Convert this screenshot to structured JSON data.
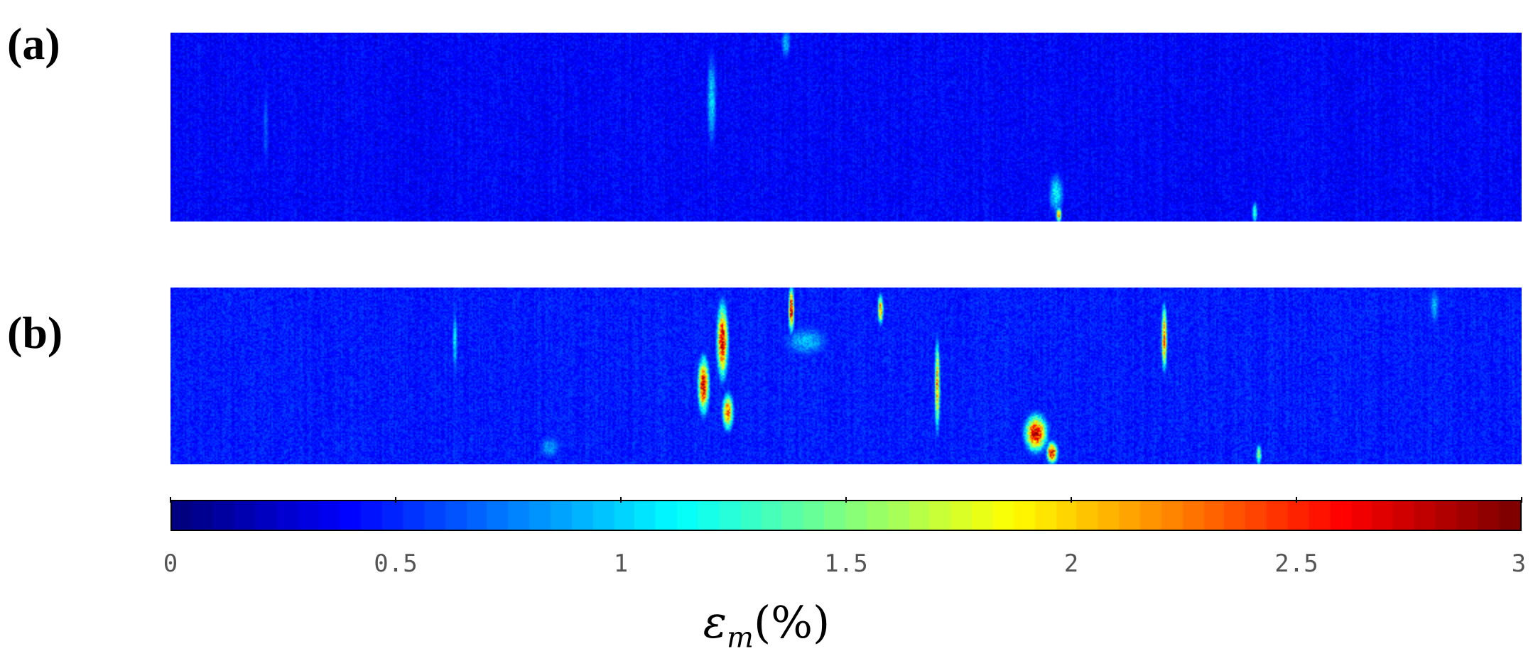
{
  "chart_data": {
    "type": "heatmap",
    "panels": [
      {
        "label": "(a)",
        "description_level": "low",
        "max_value": 2.4,
        "hotspots": [
          {
            "x": 0.4,
            "y": 0.35,
            "v": 1.1,
            "sx": 0.004,
            "sy": 0.28
          },
          {
            "x": 0.455,
            "y": 0.05,
            "v": 1.0,
            "sx": 0.004,
            "sy": 0.1
          },
          {
            "x": 0.655,
            "y": 0.85,
            "v": 1.2,
            "sx": 0.006,
            "sy": 0.12
          },
          {
            "x": 0.657,
            "y": 0.96,
            "v": 2.4,
            "sx": 0.002,
            "sy": 0.04
          },
          {
            "x": 0.802,
            "y": 0.95,
            "v": 1.5,
            "sx": 0.002,
            "sy": 0.06
          },
          {
            "x": 0.07,
            "y": 0.5,
            "v": 0.7,
            "sx": 0.003,
            "sy": 0.3
          }
        ]
      },
      {
        "label": "(b)",
        "description_level": "high",
        "max_value": 3.0,
        "hotspots": [
          {
            "x": 0.408,
            "y": 0.3,
            "v": 3.0,
            "sx": 0.004,
            "sy": 0.2
          },
          {
            "x": 0.394,
            "y": 0.55,
            "v": 3.0,
            "sx": 0.004,
            "sy": 0.15
          },
          {
            "x": 0.412,
            "y": 0.7,
            "v": 2.6,
            "sx": 0.004,
            "sy": 0.1
          },
          {
            "x": 0.459,
            "y": 0.12,
            "v": 3.0,
            "sx": 0.002,
            "sy": 0.12
          },
          {
            "x": 0.525,
            "y": 0.12,
            "v": 2.5,
            "sx": 0.002,
            "sy": 0.08
          },
          {
            "x": 0.567,
            "y": 0.55,
            "v": 2.4,
            "sx": 0.002,
            "sy": 0.25
          },
          {
            "x": 0.64,
            "y": 0.82,
            "v": 3.0,
            "sx": 0.008,
            "sy": 0.1
          },
          {
            "x": 0.652,
            "y": 0.93,
            "v": 3.0,
            "sx": 0.004,
            "sy": 0.06
          },
          {
            "x": 0.735,
            "y": 0.28,
            "v": 2.6,
            "sx": 0.002,
            "sy": 0.18
          },
          {
            "x": 0.805,
            "y": 0.94,
            "v": 1.8,
            "sx": 0.002,
            "sy": 0.06
          },
          {
            "x": 0.21,
            "y": 0.3,
            "v": 1.2,
            "sx": 0.002,
            "sy": 0.2
          },
          {
            "x": 0.47,
            "y": 0.3,
            "v": 1.0,
            "sx": 0.02,
            "sy": 0.1
          },
          {
            "x": 0.935,
            "y": 0.1,
            "v": 1.0,
            "sx": 0.004,
            "sy": 0.12
          },
          {
            "x": 0.28,
            "y": 0.9,
            "v": 0.9,
            "sx": 0.01,
            "sy": 0.08
          }
        ]
      }
    ],
    "colorbar": {
      "min": 0,
      "max": 3,
      "ticks": [
        "0",
        "0.5",
        "1",
        "1.5",
        "2",
        "2.5",
        "3"
      ],
      "tick_values": [
        0,
        0.5,
        1,
        1.5,
        2,
        2.5,
        3
      ],
      "colormap": "jet",
      "label_symbol": "ε",
      "label_subscript": "m",
      "label_unit": "(%)"
    }
  }
}
